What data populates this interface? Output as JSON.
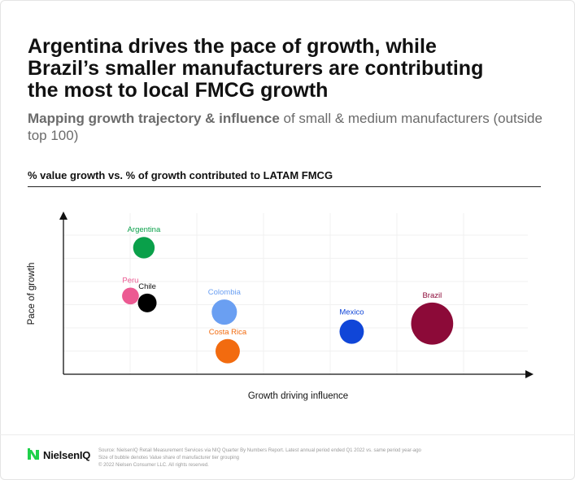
{
  "title_lines": [
    "Argentina drives the pace of growth, while",
    "Brazil’s smaller manufacturers are contributing",
    "the most to local FMCG growth"
  ],
  "subtitle": {
    "bold": "Mapping growth trajectory & influence",
    "rest": " of small & medium manufacturers (outside top 100)"
  },
  "section_label": "% value growth vs. % of growth contributed to LATAM FMCG",
  "footer": {
    "logo_text": "NielsenIQ",
    "notes": [
      "Source: NielsenIQ Retail Measurement Services via NIQ Quarter By Numbers Report. Latest annual period ended Q1 2022 vs. same period year-ago",
      "Size of bubble denotes Value share of manufacturer tier grouping",
      "© 2022 Nielsen Consumer LLC. All rights reserved."
    ]
  },
  "chart_data": {
    "type": "scatter",
    "subtype": "bubble",
    "xlabel": "Growth driving influence",
    "ylabel": "Pace of growth",
    "xlim": [
      0,
      7
    ],
    "ylim": [
      0,
      7
    ],
    "grid": true,
    "legend": "none",
    "points": [
      {
        "name": "Argentina",
        "x": 1.2,
        "y": 5.5,
        "size": 1.15,
        "color": "#0aa04a"
      },
      {
        "name": "Peru",
        "x": 1.0,
        "y": 3.4,
        "size": 0.9,
        "color": "#ec5a92"
      },
      {
        "name": "Chile",
        "x": 1.25,
        "y": 3.1,
        "size": 1.0,
        "color": "#000000"
      },
      {
        "name": "Colombia",
        "x": 2.4,
        "y": 2.7,
        "size": 1.35,
        "color": "#6a9ff2"
      },
      {
        "name": "Costa Rica",
        "x": 2.45,
        "y": 1.0,
        "size": 1.3,
        "color": "#f26b0f"
      },
      {
        "name": "Mexico",
        "x": 4.3,
        "y": 1.85,
        "size": 1.3,
        "color": "#1046d8"
      },
      {
        "name": "Brazil",
        "x": 5.5,
        "y": 2.2,
        "size": 2.25,
        "color": "#8c0a38"
      }
    ]
  }
}
